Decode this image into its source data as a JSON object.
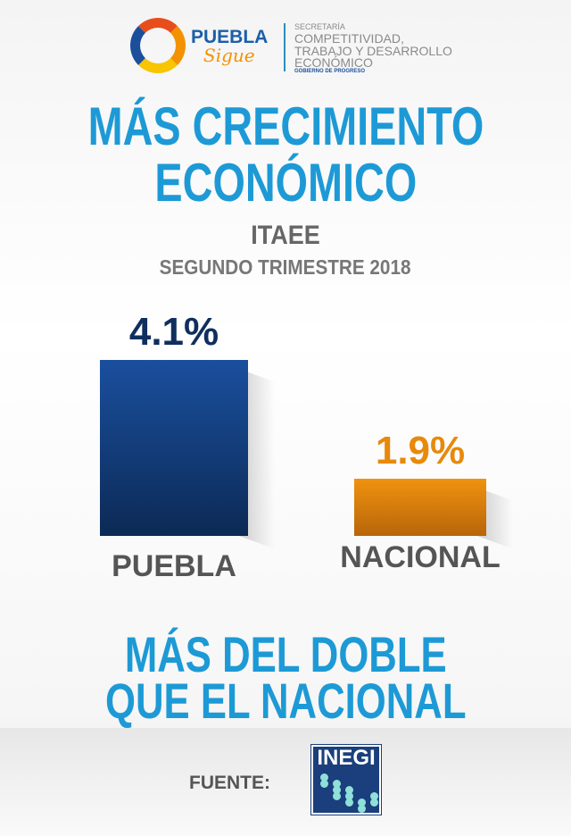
{
  "header": {
    "logo_text": "PUEBLA Sigue",
    "brand_puebla": "PUEBLA",
    "brand_sigue": "Sigue",
    "secretaria": "SECRETARÍA",
    "dept_line1": "COMPETITIVIDAD,",
    "dept_line2": "TRABAJO Y DESARROLLO",
    "dept_line3": "ECONÓMICO",
    "gobierno": "GOBIERNO DE PROGRESO"
  },
  "title_line1": "MÁS CRECIMIENTO",
  "title_line2": "ECONÓMICO",
  "subtitle": "ITAEE",
  "period": "SEGUNDO TRIMESTRE 2018",
  "chart_data": {
    "type": "bar",
    "title": "MÁS CRECIMIENTO ECONÓMICO",
    "subtitle": "ITAEE SEGUNDO TRIMESTRE 2018",
    "categories": [
      "PUEBLA",
      "NACIONAL"
    ],
    "values": [
      4.1,
      1.9
    ],
    "labels": [
      "4.1%",
      "1.9%"
    ],
    "colors": [
      "#1a4a8f",
      "#e8890c"
    ],
    "ylim": [
      0.85,
      4.1
    ],
    "grid": false,
    "xlabel": "",
    "ylabel": ""
  },
  "tagline_line1": "MÁS DEL DOBLE",
  "tagline_line2": "QUE EL NACIONAL",
  "footer": {
    "source_label": "FUENTE:",
    "source_logo": "INEGI"
  }
}
